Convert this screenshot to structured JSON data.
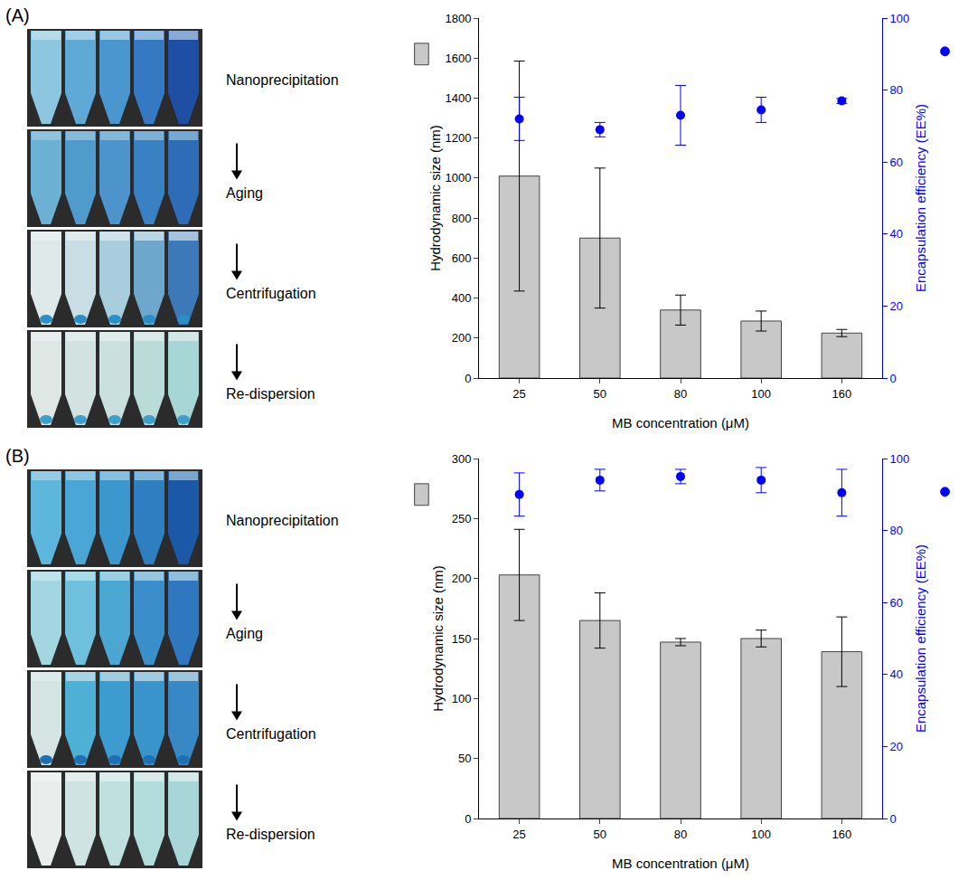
{
  "panels": [
    {
      "label": "(A)",
      "steps": [
        "Nanoprecipitation",
        "Aging",
        "Centrifugation",
        "Re-dispersion"
      ]
    },
    {
      "label": "(B)",
      "steps": [
        "Nanoprecipitation",
        "Aging",
        "Centrifugation",
        "Re-dispersion"
      ]
    }
  ],
  "chart_data": [
    {
      "type": "bar",
      "categories": [
        "25",
        "50",
        "80",
        "100",
        "160"
      ],
      "x_label": "MB concentration (μM)",
      "y_label": "Hydrodynamic size (nm)",
      "y2_label": "Encapsulation efficiency (EE%)",
      "ylim": [
        0,
        1800
      ],
      "yticks": [
        0,
        200,
        400,
        600,
        800,
        1000,
        1200,
        1400,
        1600,
        1800
      ],
      "y2lim": [
        0,
        100
      ],
      "y2ticks": [
        0,
        20,
        40,
        60,
        80,
        100
      ],
      "grid": false,
      "series": [
        {
          "type": "bar",
          "color": "#c8c8c8",
          "values": [
            1010,
            700,
            340,
            285,
            225
          ],
          "errors": [
            575,
            350,
            75,
            50,
            18
          ]
        },
        {
          "type": "scatter",
          "axis": "y2",
          "color": "#0000ff",
          "marker": "circle",
          "values": [
            72,
            69,
            73,
            74.5,
            77
          ],
          "errors": [
            6,
            2,
            8.3,
            3.5,
            0.7
          ]
        }
      ]
    },
    {
      "type": "bar",
      "categories": [
        "25",
        "50",
        "80",
        "100",
        "160"
      ],
      "x_label": "MB concentration (μM)",
      "y_label": "Hydrodynamic size (nm)",
      "y2_label": "Encapsulation efficiency (EE%)",
      "ylim": [
        0,
        300
      ],
      "yticks": [
        0,
        50,
        100,
        150,
        200,
        250,
        300
      ],
      "y2lim": [
        0,
        100
      ],
      "y2ticks": [
        0,
        20,
        40,
        60,
        80,
        100
      ],
      "grid": false,
      "series": [
        {
          "type": "bar",
          "color": "#c8c8c8",
          "values": [
            203,
            165,
            147,
            150,
            139
          ],
          "errors": [
            38,
            23,
            3,
            7,
            29
          ]
        },
        {
          "type": "scatter",
          "axis": "y2",
          "color": "#0000ff",
          "marker": "circle",
          "values": [
            90,
            94,
            95,
            94,
            90.5
          ],
          "errors": [
            6,
            3,
            2,
            3.5,
            6.5
          ]
        }
      ]
    }
  ]
}
